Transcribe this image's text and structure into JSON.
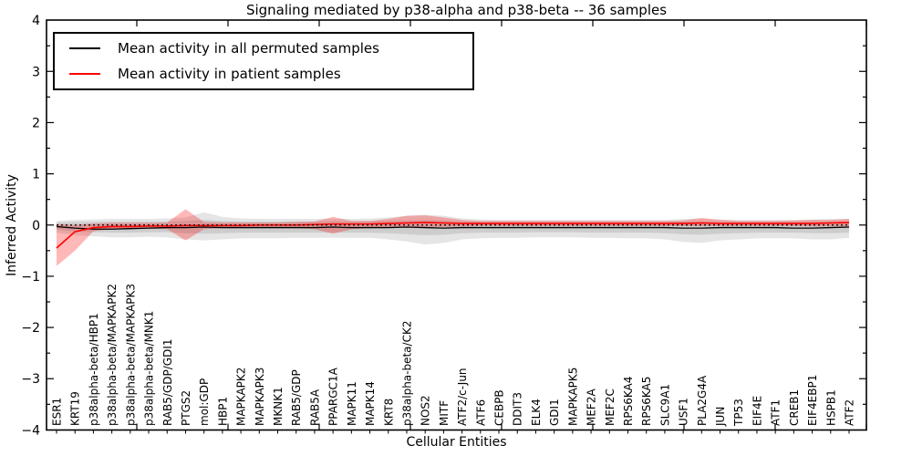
{
  "chart_data": {
    "type": "line",
    "title": "Signaling mediated by p38-alpha and p38-beta -- 36 samples",
    "xlabel": "Cellular Entities",
    "ylabel": "Inferred Activity",
    "ylim": [
      -4,
      4
    ],
    "yticks": [
      -4,
      -3,
      -2,
      -1,
      0,
      1,
      2,
      3,
      4
    ],
    "ytick_minor_step": 0.5,
    "grid": false,
    "zero_reference_line": true,
    "legend_position": "upper-left",
    "legend_items": [
      {
        "label": "Mean activity in all permuted samples",
        "color": "#000000"
      },
      {
        "label": "Mean activity in patient samples",
        "color": "#ff0000"
      }
    ],
    "categories": [
      "ESR1",
      "KRT19",
      "p38alpha-beta/HBP1",
      "p38alpha-beta/MAPKAPK2",
      "p38alpha-beta/MAPKAPK3",
      "p38alpha-beta/MNK1",
      "RAB5/GDP/GDI1",
      "PTGS2",
      "mol:GDP",
      "HBP1",
      "MAPKAPK2",
      "MAPKAPK3",
      "MKNK1",
      "RAB5/GDP",
      "RAB5A",
      "PPARGC1A",
      "MAPK11",
      "MAPK14",
      "KRT8",
      "p38alpha-beta/CK2",
      "NOS2",
      "MITF",
      "ATF2/c-Jun",
      "ATF6",
      "CEBPB",
      "DDIT3",
      "ELK4",
      "GDI1",
      "MAPKAPK5",
      "MEF2A",
      "MEF2C",
      "RPS6KA4",
      "RPS6KA5",
      "SLC9A1",
      "USF1",
      "PLA2G4A",
      "JUN",
      "TP53",
      "EIF4E",
      "ATF1",
      "CREB1",
      "EIF4EBP1",
      "HSPB1",
      "ATF2"
    ],
    "series": [
      {
        "name": "Mean activity in all permuted samples",
        "color": "#000000",
        "band_color": "rgba(0,0,0,0.10)",
        "values": [
          -0.03,
          -0.06,
          -0.08,
          -0.08,
          -0.07,
          -0.06,
          -0.05,
          -0.05,
          -0.04,
          -0.05,
          -0.05,
          -0.05,
          -0.05,
          -0.05,
          -0.05,
          -0.04,
          -0.05,
          -0.05,
          -0.05,
          -0.04,
          -0.05,
          -0.06,
          -0.05,
          -0.05,
          -0.05,
          -0.05,
          -0.05,
          -0.05,
          -0.05,
          -0.05,
          -0.05,
          -0.05,
          -0.05,
          -0.05,
          -0.06,
          -0.06,
          -0.05,
          -0.05,
          -0.05,
          -0.05,
          -0.06,
          -0.06,
          -0.05,
          -0.04
        ],
        "band_lo": [
          -0.15,
          -0.2,
          -0.22,
          -0.24,
          -0.24,
          -0.23,
          -0.24,
          -0.28,
          -0.3,
          -0.28,
          -0.26,
          -0.26,
          -0.26,
          -0.25,
          -0.25,
          -0.25,
          -0.25,
          -0.25,
          -0.28,
          -0.32,
          -0.38,
          -0.35,
          -0.28,
          -0.26,
          -0.25,
          -0.25,
          -0.24,
          -0.24,
          -0.24,
          -0.25,
          -0.25,
          -0.26,
          -0.26,
          -0.28,
          -0.33,
          -0.35,
          -0.3,
          -0.28,
          -0.26,
          -0.26,
          -0.26,
          -0.28,
          -0.28,
          -0.25
        ],
        "band_hi": [
          0.08,
          0.1,
          0.11,
          0.12,
          0.12,
          0.12,
          0.13,
          0.15,
          0.25,
          0.16,
          0.13,
          0.12,
          0.12,
          0.12,
          0.12,
          0.12,
          0.12,
          0.13,
          0.15,
          0.18,
          0.2,
          0.18,
          0.13,
          0.11,
          0.1,
          0.1,
          0.1,
          0.1,
          0.1,
          0.1,
          0.1,
          0.1,
          0.1,
          0.1,
          0.12,
          0.12,
          0.11,
          0.1,
          0.1,
          0.1,
          0.1,
          0.11,
          0.12,
          0.12
        ],
        "inner_lo": [
          -0.09,
          -0.13,
          -0.14,
          -0.15,
          -0.15,
          -0.14,
          -0.14,
          -0.16,
          -0.17,
          -0.16,
          -0.15,
          -0.15,
          -0.15,
          -0.15,
          -0.15,
          -0.15,
          -0.15,
          -0.15,
          -0.16,
          -0.18,
          -0.2,
          -0.19,
          -0.16,
          -0.15,
          -0.15,
          -0.15,
          -0.14,
          -0.14,
          -0.14,
          -0.15,
          -0.15,
          -0.15,
          -0.15,
          -0.16,
          -0.18,
          -0.19,
          -0.17,
          -0.16,
          -0.15,
          -0.15,
          -0.15,
          -0.16,
          -0.16,
          -0.15
        ],
        "inner_hi": [
          0.05,
          0.06,
          0.06,
          0.07,
          0.07,
          0.07,
          0.07,
          0.08,
          0.1,
          0.08,
          0.07,
          0.07,
          0.07,
          0.07,
          0.07,
          0.07,
          0.07,
          0.07,
          0.08,
          0.09,
          0.1,
          0.09,
          0.07,
          0.06,
          0.06,
          0.06,
          0.06,
          0.06,
          0.06,
          0.06,
          0.06,
          0.06,
          0.06,
          0.06,
          0.07,
          0.07,
          0.06,
          0.06,
          0.06,
          0.06,
          0.06,
          0.07,
          0.07,
          0.07
        ]
      },
      {
        "name": "Mean activity in patient samples",
        "color": "#ff0000",
        "band_color": "rgba(255,0,0,0.28)",
        "values": [
          -0.45,
          -0.13,
          -0.05,
          -0.03,
          -0.03,
          -0.02,
          -0.02,
          -0.01,
          -0.01,
          -0.01,
          -0.01,
          0.0,
          0.0,
          0.0,
          0.01,
          0.02,
          0.02,
          0.02,
          0.03,
          0.04,
          0.05,
          0.04,
          0.03,
          0.03,
          0.03,
          0.03,
          0.03,
          0.03,
          0.03,
          0.03,
          0.03,
          0.03,
          0.03,
          0.03,
          0.03,
          0.04,
          0.03,
          0.03,
          0.03,
          0.03,
          0.03,
          0.03,
          0.04,
          0.05
        ],
        "band_lo": [
          -0.8,
          -0.5,
          -0.12,
          -0.08,
          -0.07,
          -0.07,
          -0.08,
          -0.3,
          -0.08,
          -0.06,
          -0.06,
          -0.06,
          -0.06,
          -0.06,
          -0.08,
          -0.17,
          -0.08,
          -0.06,
          -0.05,
          -0.05,
          -0.04,
          -0.04,
          -0.03,
          -0.02,
          -0.02,
          -0.02,
          -0.02,
          -0.02,
          -0.02,
          -0.02,
          -0.02,
          -0.02,
          -0.02,
          -0.02,
          -0.02,
          -0.02,
          -0.02,
          -0.02,
          -0.02,
          -0.02,
          -0.02,
          -0.03,
          -0.03,
          -0.03
        ],
        "band_hi": [
          0.02,
          0.0,
          0.03,
          0.04,
          0.04,
          0.04,
          0.05,
          0.31,
          0.06,
          0.05,
          0.05,
          0.05,
          0.05,
          0.06,
          0.07,
          0.16,
          0.08,
          0.08,
          0.12,
          0.18,
          0.19,
          0.15,
          0.1,
          0.08,
          0.08,
          0.08,
          0.08,
          0.08,
          0.08,
          0.08,
          0.08,
          0.08,
          0.08,
          0.08,
          0.09,
          0.14,
          0.1,
          0.08,
          0.08,
          0.08,
          0.09,
          0.1,
          0.1,
          0.12
        ]
      }
    ]
  }
}
